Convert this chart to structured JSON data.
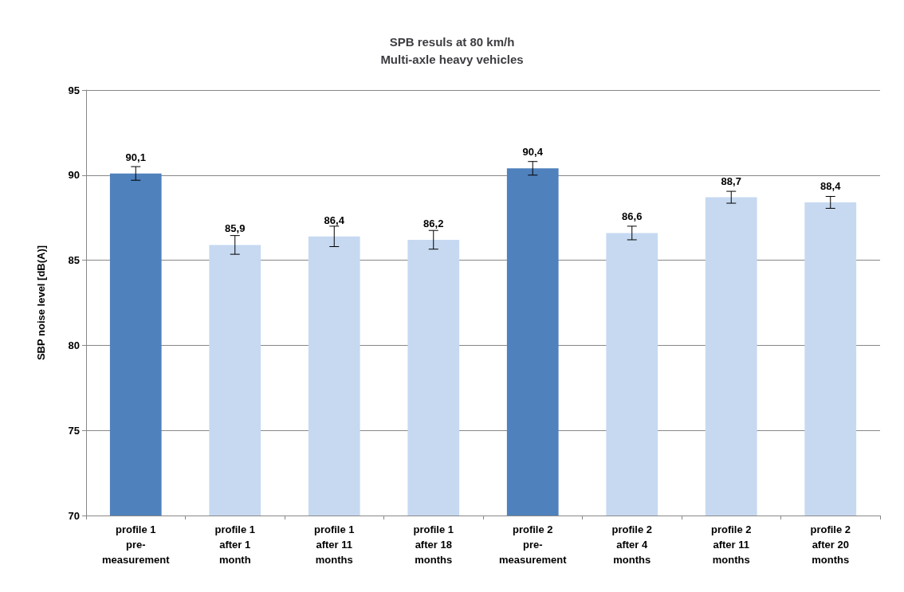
{
  "chart_data": {
    "type": "bar",
    "title": "SPB resuls at 80 km/h\nMulti-axle heavy vehicles",
    "ylabel": "SBP noise level [dB(A)]",
    "categories": [
      "profile 1\npre-\nmeasurement",
      "profile 1\nafter 1\nmonth",
      "profile 1\nafter 11\nmonths",
      "profile 1\nafter 18\nmonths",
      "profile 2\npre-\nmeasurement",
      "profile 2\nafter 4\nmonths",
      "profile 2\nafter 11\nmonths",
      "profile 2\nafter 20\nmonths"
    ],
    "values": [
      90.1,
      85.9,
      86.4,
      86.2,
      90.4,
      86.6,
      88.7,
      88.4
    ],
    "value_labels": [
      "90,1",
      "85,9",
      "86,4",
      "86,2",
      "90,4",
      "86,6",
      "88,7",
      "88,4"
    ],
    "errors": [
      0.4,
      0.55,
      0.6,
      0.55,
      0.4,
      0.4,
      0.35,
      0.35
    ],
    "colors": [
      "#4f81bd",
      "#c6d9f1",
      "#c6d9f1",
      "#c6d9f1",
      "#4f81bd",
      "#c6d9f1",
      "#c6d9f1",
      "#c6d9f1"
    ],
    "ylim": [
      70,
      95
    ],
    "yticks": [
      70,
      75,
      80,
      85,
      90,
      95
    ],
    "grid": "y"
  }
}
